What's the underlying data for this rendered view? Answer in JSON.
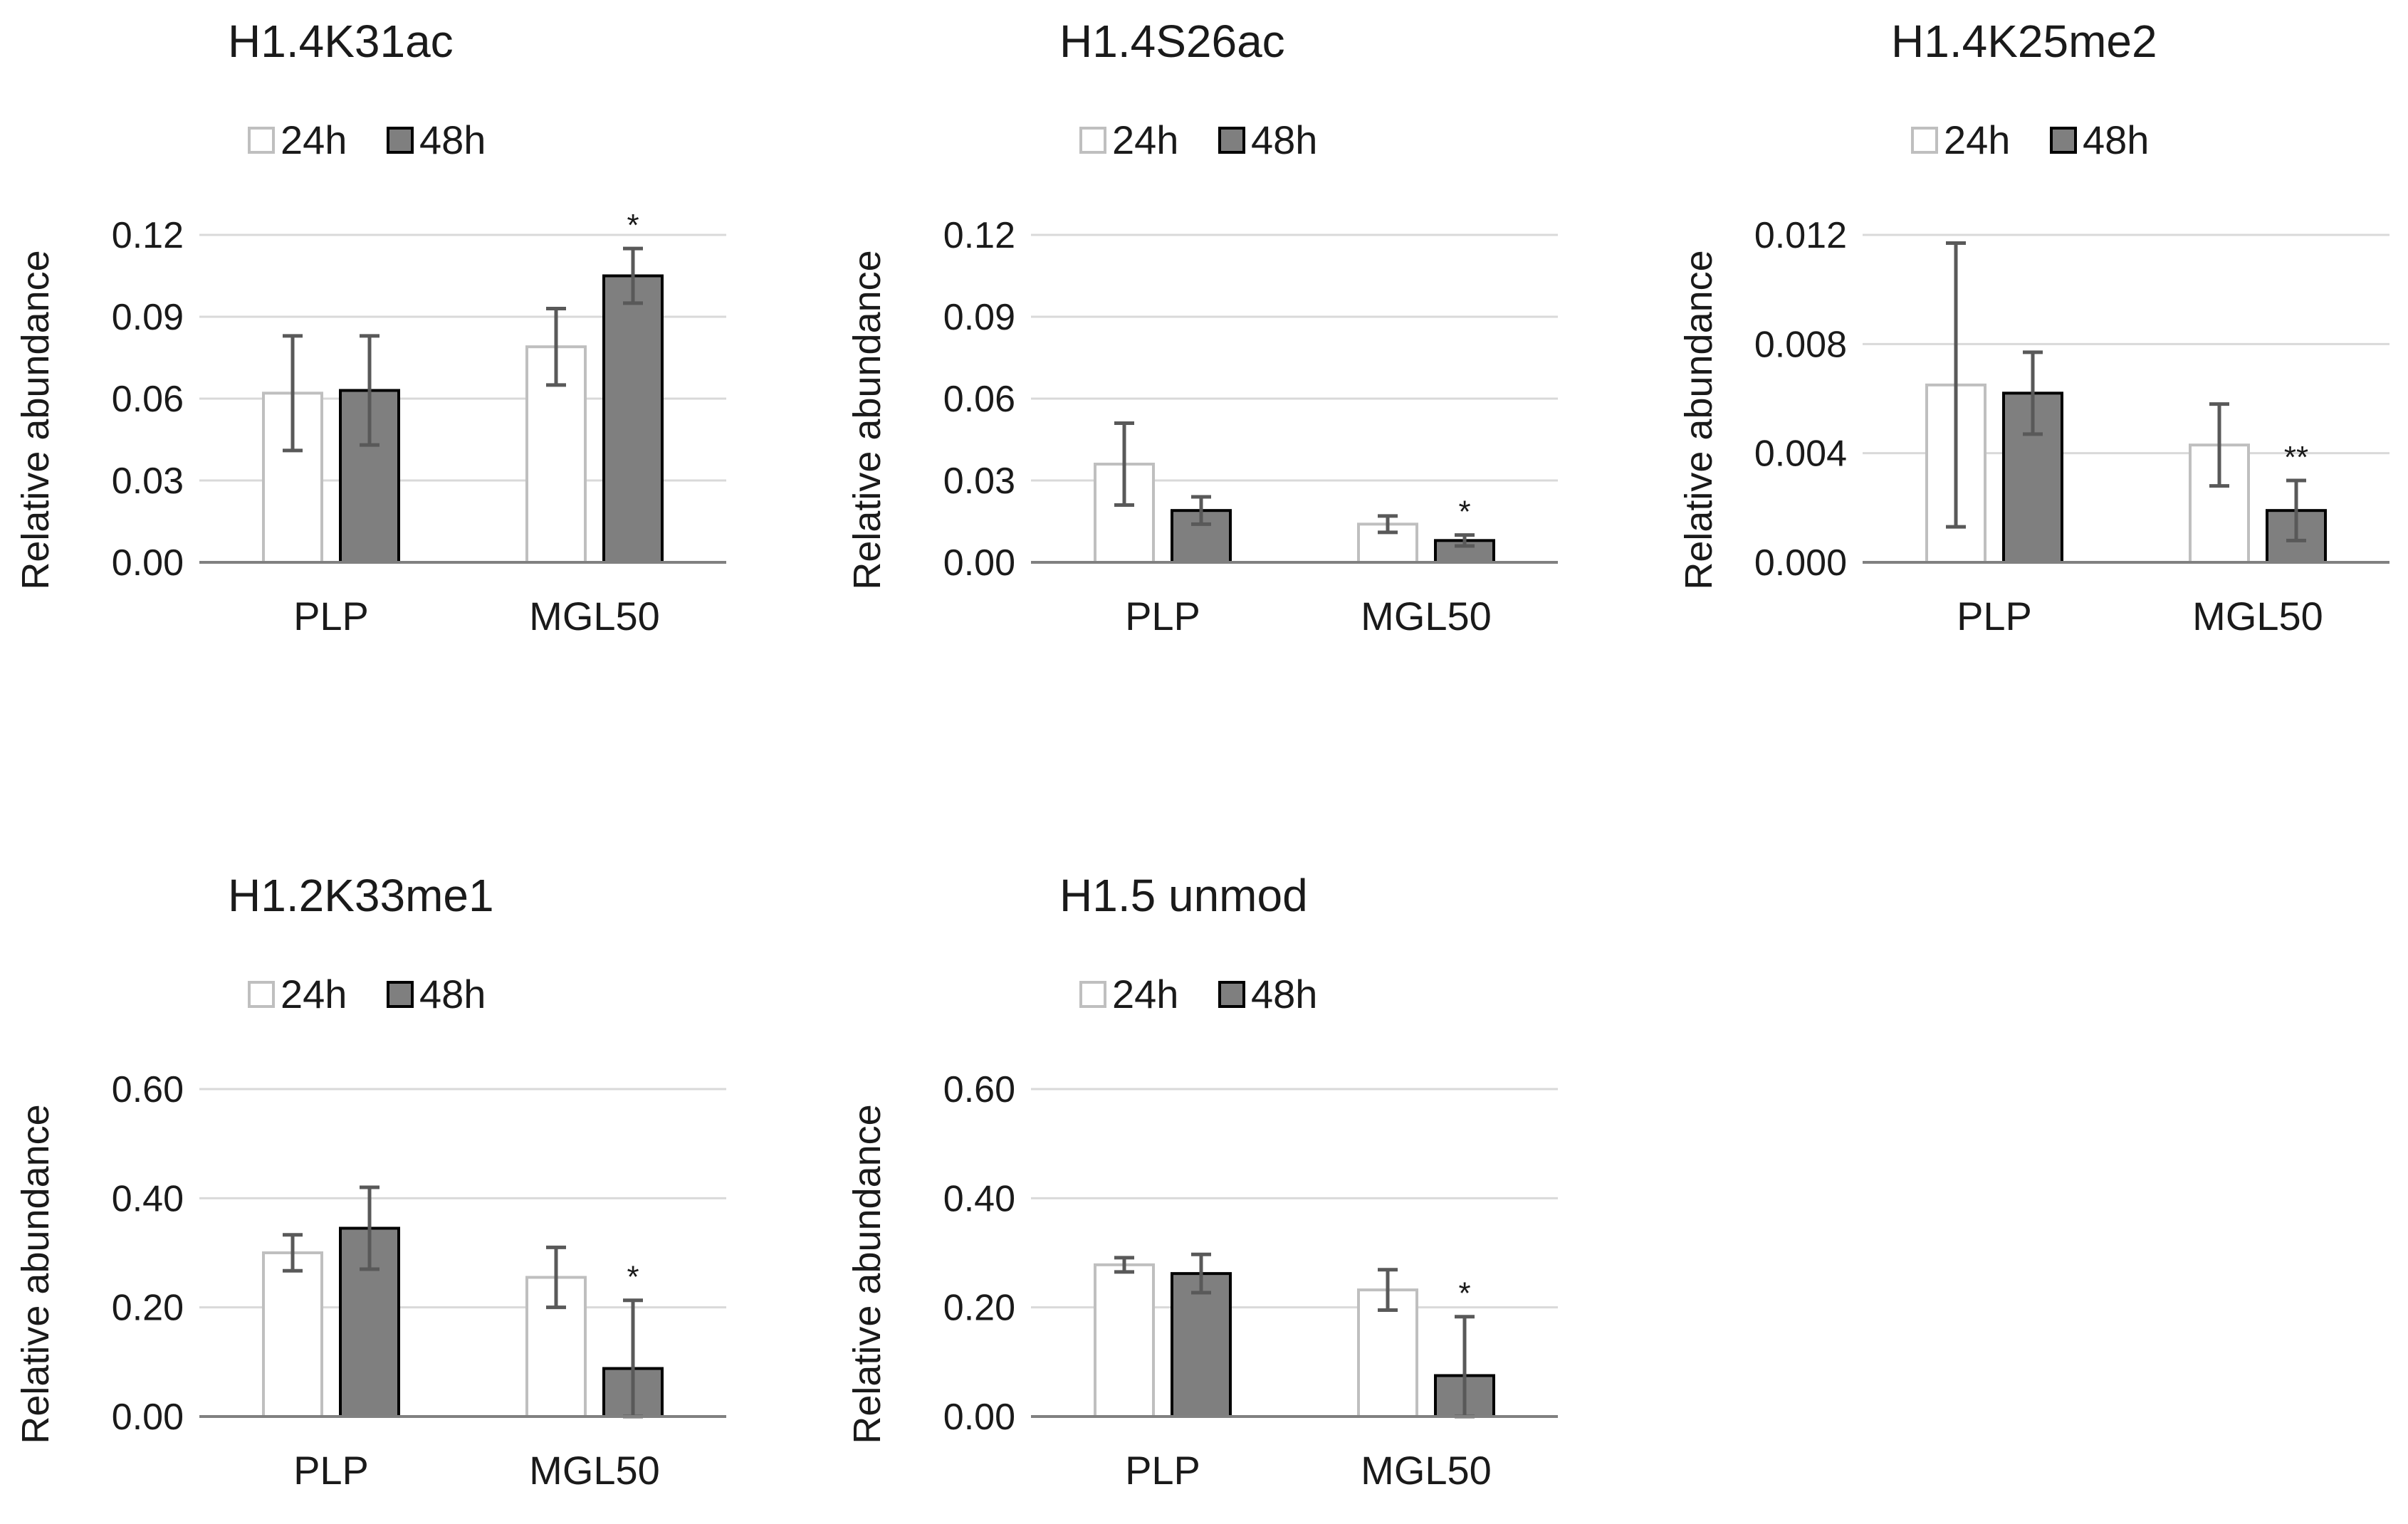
{
  "colors": {
    "h24_fill": "#ffffff",
    "h24_stroke": "#bfbfbf",
    "h48_fill": "#7f7f7f",
    "h48_stroke": "#000000",
    "grid": "#d9d9d9",
    "axis": "#808080",
    "error": "#595959"
  },
  "chart_data": [
    {
      "type": "bar",
      "title": "H1.4K31ac",
      "ylabel": "Relative abundance",
      "categories": [
        "PLP",
        "MGL50"
      ],
      "ylim": [
        0,
        0.12
      ],
      "yticks": [
        "0.00",
        "0.03",
        "0.06",
        "0.09",
        "0.12"
      ],
      "legend": [
        "24h",
        "48h"
      ],
      "series": [
        {
          "name": "24h",
          "values": [
            0.062,
            0.079
          ],
          "errors": [
            0.021,
            0.014
          ]
        },
        {
          "name": "48h",
          "values": [
            0.063,
            0.105
          ],
          "errors": [
            0.02,
            0.01
          ]
        }
      ],
      "annotations": [
        {
          "category": "MGL50",
          "series": "48h",
          "text": "*"
        }
      ]
    },
    {
      "type": "bar",
      "title": "H1.4S26ac",
      "ylabel": "Relative abundance",
      "categories": [
        "PLP",
        "MGL50"
      ],
      "ylim": [
        0,
        0.12
      ],
      "yticks": [
        "0.00",
        "0.03",
        "0.06",
        "0.09",
        "0.12"
      ],
      "legend": [
        "24h",
        "48h"
      ],
      "series": [
        {
          "name": "24h",
          "values": [
            0.036,
            0.014
          ],
          "errors": [
            0.015,
            0.003
          ]
        },
        {
          "name": "48h",
          "values": [
            0.019,
            0.008
          ],
          "errors": [
            0.005,
            0.002
          ]
        }
      ],
      "annotations": [
        {
          "category": "MGL50",
          "series": "48h",
          "text": "*"
        }
      ]
    },
    {
      "type": "bar",
      "title": "H1.4K25me2",
      "ylabel": "Relative abundance",
      "categories": [
        "PLP",
        "MGL50"
      ],
      "ylim": [
        0,
        0.012
      ],
      "yticks": [
        "0.000",
        "0.004",
        "0.008",
        "0.012"
      ],
      "legend": [
        "24h",
        "48h"
      ],
      "series": [
        {
          "name": "24h",
          "values": [
            0.0065,
            0.0043
          ],
          "errors": [
            0.0052,
            0.0015
          ]
        },
        {
          "name": "48h",
          "values": [
            0.0062,
            0.0019
          ],
          "errors": [
            0.0015,
            0.0011
          ]
        }
      ],
      "annotations": [
        {
          "category": "MGL50",
          "series": "48h",
          "text": "**"
        }
      ]
    },
    {
      "type": "bar",
      "title": "H1.2K33me1",
      "ylabel": "Relative abundance",
      "categories": [
        "PLP",
        "MGL50"
      ],
      "ylim": [
        0,
        0.6
      ],
      "yticks": [
        "0.00",
        "0.20",
        "0.40",
        "0.60"
      ],
      "legend": [
        "24h",
        "48h"
      ],
      "series": [
        {
          "name": "24h",
          "values": [
            0.3,
            0.255
          ],
          "errors": [
            0.033,
            0.055
          ]
        },
        {
          "name": "48h",
          "values": [
            0.345,
            0.088
          ],
          "errors": [
            0.075,
            0.125
          ]
        }
      ],
      "annotations": [
        {
          "category": "MGL50",
          "series": "48h",
          "text": "*"
        }
      ]
    },
    {
      "type": "bar",
      "title": "H1.5 unmod",
      "ylabel": "Relative abundance",
      "categories": [
        "PLP",
        "MGL50"
      ],
      "ylim": [
        0,
        0.6
      ],
      "yticks": [
        "0.00",
        "0.20",
        "0.40",
        "0.60"
      ],
      "legend": [
        "24h",
        "48h"
      ],
      "series": [
        {
          "name": "24h",
          "values": [
            0.278,
            0.232
          ],
          "errors": [
            0.013,
            0.037
          ]
        },
        {
          "name": "48h",
          "values": [
            0.262,
            0.075
          ],
          "errors": [
            0.035,
            0.108
          ]
        }
      ],
      "annotations": [
        {
          "category": "MGL50",
          "series": "48h",
          "text": "*"
        }
      ]
    }
  ]
}
